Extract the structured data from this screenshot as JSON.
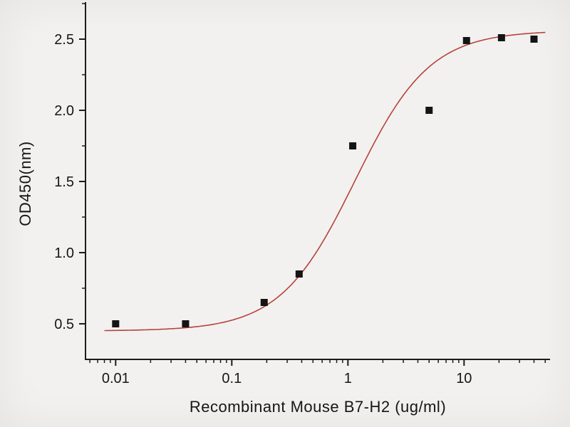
{
  "page": {
    "background": "#f2f1ef"
  },
  "chart_data": {
    "type": "scatter",
    "title": "",
    "xlabel": "Recombinant Mouse B7-H2 (ug/ml)",
    "ylabel": "OD450(nm)",
    "xscale": "log",
    "yscale": "linear",
    "xlim": [
      0.0055,
      55
    ],
    "ylim": [
      0.25,
      2.76
    ],
    "grid": false,
    "legend": null,
    "x_ticks": [
      0.01,
      0.1,
      1,
      10
    ],
    "x_tick_labels": [
      "0.01",
      "0.1",
      "1",
      "10"
    ],
    "y_ticks": [
      0.5,
      1.0,
      1.5,
      2.0,
      2.5
    ],
    "y_tick_labels": [
      "0.5",
      "1.0",
      "1.5",
      "2.0",
      "2.5"
    ],
    "y_minor_ticks": [
      0.25,
      0.75,
      1.25,
      1.75,
      2.25,
      2.75
    ],
    "x": [
      0.01,
      0.04,
      0.19,
      0.38,
      1.1,
      5,
      10.5,
      21,
      40
    ],
    "y": [
      0.5,
      0.5,
      0.65,
      0.85,
      1.75,
      2.0,
      2.49,
      2.51,
      2.5
    ],
    "points": {
      "marker": "square",
      "size": 10,
      "color": "#141414"
    },
    "fit_curve": {
      "model": "4PL-sigmoid",
      "bottom": 0.45,
      "top": 2.56,
      "ec50": 1.15,
      "hill": 1.35,
      "color": "#b5433f",
      "x_range": [
        0.008,
        50
      ]
    },
    "axis_color": "#1c1c1c",
    "text_color": "#161616"
  }
}
